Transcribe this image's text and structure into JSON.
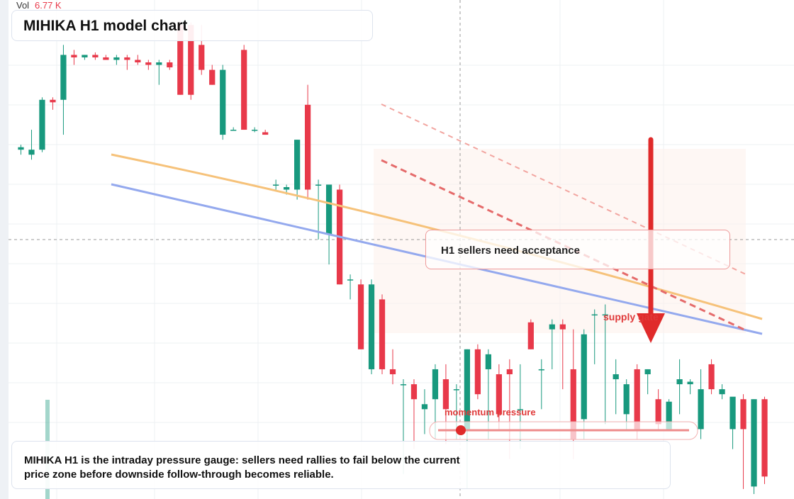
{
  "chart_data": {
    "type": "candlestick",
    "title": "MIHIKA H1 model chart",
    "volume_label": "Vol",
    "volume_value": "6.77 K",
    "annotations": {
      "box": "H1 sellers need acceptance",
      "zone": "supply gate",
      "gauge": "momentum pressure",
      "footer": "MIHIKA H1 is the intraday pressure gauge: sellers need rallies to fail below the current price zone before downside follow-through becomes reliable."
    },
    "up_color": "#18997e",
    "down_color": "#e8394a",
    "open": [
      70,
      69,
      70,
      80,
      80,
      89,
      88.5,
      89,
      88.5,
      88,
      88.5,
      88,
      87.5,
      87,
      87.5,
      95,
      95,
      91,
      86,
      73,
      74,
      90,
      74,
      73.5,
      63,
      62,
      62,
      79,
      63,
      53,
      62,
      44,
      43,
      26,
      40,
      26,
      23,
      23,
      18,
      20,
      24,
      22,
      14,
      30,
      26,
      25,
      26,
      18,
      35.4,
      26,
      34,
      35,
      26,
      16,
      37,
      37,
      24,
      17,
      26,
      25,
      20,
      14,
      23,
      23,
      14,
      27,
      21,
      14,
      20,
      2.5,
      20
    ],
    "high": [
      71,
      74,
      80.5,
      80.5,
      91,
      90,
      89,
      89.5,
      89,
      89,
      89,
      89,
      88,
      88,
      88,
      96,
      95.5,
      95,
      87,
      87,
      74.5,
      91,
      74.5,
      74,
      64,
      63,
      72,
      83,
      64,
      63,
      63,
      45,
      44,
      44,
      41,
      30,
      24,
      24,
      22,
      27,
      27,
      23,
      30,
      31,
      30,
      27,
      28,
      27,
      36,
      28,
      36,
      36,
      34,
      34,
      38,
      39,
      28,
      24,
      27,
      26,
      22,
      20,
      28,
      24,
      26,
      28,
      23,
      20,
      21,
      20,
      20.5
    ],
    "low": [
      69,
      68,
      69.5,
      78,
      73,
      87,
      88,
      88,
      88,
      87,
      86,
      87,
      86,
      83,
      86,
      81,
      80,
      85,
      83,
      72,
      74,
      74,
      73.5,
      73,
      62,
      61,
      60,
      60,
      52,
      47,
      43,
      40,
      30,
      25,
      25,
      23,
      5,
      10,
      13,
      12,
      11,
      12,
      2,
      20,
      12,
      14,
      8,
      10,
      30,
      18,
      26,
      22,
      8,
      12,
      27,
      15,
      17,
      14,
      12,
      21,
      14,
      14,
      17,
      21,
      12,
      21,
      20,
      10,
      2,
      1,
      3
    ],
    "close": [
      70.5,
      70,
      80,
      79.5,
      89,
      88.5,
      89,
      88.5,
      88,
      88.5,
      88,
      87.5,
      87,
      87.5,
      86.5,
      81,
      81,
      86,
      83,
      86,
      74,
      74,
      74,
      73,
      63,
      62.5,
      72,
      62,
      63,
      63,
      43,
      44,
      30,
      43,
      26,
      25,
      23,
      20,
      19,
      26,
      18,
      22,
      30,
      21,
      29,
      17,
      25,
      18,
      30,
      26,
      35,
      34,
      12,
      33,
      37,
      37,
      25,
      23,
      14,
      26,
      15,
      19.5,
      24,
      23.5,
      22,
      22,
      22,
      20.5,
      14,
      20,
      4.5
    ],
    "ylim": [
      0,
      100
    ]
  }
}
